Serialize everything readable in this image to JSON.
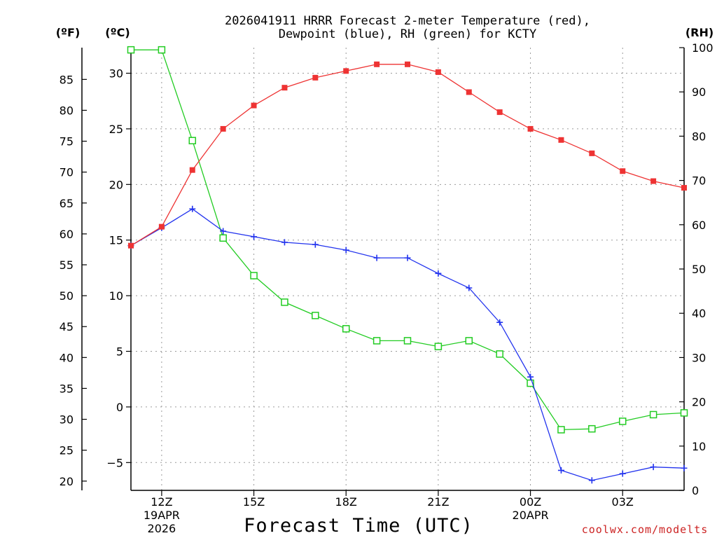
{
  "chart_data": {
    "type": "line",
    "title_line1": "2026041911 HRRR Forecast 2-meter Temperature (red),",
    "title_line2": "Dewpoint (blue), RH (green) for KCTY",
    "xlabel": "Forecast Time (UTC)",
    "credit": "coolwx.com/modelts",
    "left_unit_f": "(ºF)",
    "left_unit_c": "(ºC)",
    "right_unit": "(RH)",
    "x_hours": [
      11,
      12,
      13,
      14,
      15,
      16,
      17,
      18,
      19,
      20,
      21,
      22,
      23,
      24,
      25,
      26,
      27,
      28,
      29
    ],
    "x_ticks": [
      {
        "hour": 12,
        "label": "12Z",
        "sub1": "19APR",
        "sub2": "2026"
      },
      {
        "hour": 15,
        "label": "15Z",
        "sub1": "",
        "sub2": ""
      },
      {
        "hour": 18,
        "label": "18Z",
        "sub1": "",
        "sub2": ""
      },
      {
        "hour": 21,
        "label": "21Z",
        "sub1": "",
        "sub2": ""
      },
      {
        "hour": 24,
        "label": "00Z",
        "sub1": "20APR",
        "sub2": ""
      },
      {
        "hour": 27,
        "label": "03Z",
        "sub1": "",
        "sub2": ""
      }
    ],
    "xlim": [
      11,
      29
    ],
    "ylim_c": [
      -7.5,
      32.3
    ],
    "ylim_rh": [
      0,
      100
    ],
    "c_ticks": [
      "-5",
      "0",
      "5",
      "10",
      "15",
      "20",
      "25",
      "30"
    ],
    "f_ticks": [
      "20",
      "25",
      "30",
      "35",
      "40",
      "45",
      "50",
      "55",
      "60",
      "65",
      "70",
      "75",
      "80",
      "85"
    ],
    "rh_ticks": [
      "0",
      "10",
      "20",
      "30",
      "40",
      "50",
      "60",
      "70",
      "80",
      "90",
      "100"
    ],
    "series": [
      {
        "name": "Temperature",
        "unit": "C",
        "color": "#ee3333",
        "marker": "filled-square",
        "values": [
          14.5,
          16.2,
          21.3,
          25.0,
          27.1,
          28.7,
          29.6,
          30.2,
          30.8,
          30.8,
          30.1,
          28.3,
          26.5,
          25.0,
          24.0,
          22.8,
          21.2,
          20.3,
          19.7
        ]
      },
      {
        "name": "Dewpoint",
        "unit": "C",
        "color": "#2233ee",
        "marker": "plus",
        "values": [
          14.5,
          16.1,
          17.8,
          15.8,
          15.3,
          14.8,
          14.6,
          14.1,
          13.4,
          13.4,
          12.0,
          10.7,
          7.6,
          2.7,
          -5.7,
          -6.6,
          -6.0,
          -5.4,
          -5.5
        ]
      },
      {
        "name": "RH",
        "unit": "%",
        "color": "#22cc22",
        "marker": "open-square",
        "values": [
          99.5,
          99.5,
          79.0,
          57.0,
          48.5,
          42.5,
          39.5,
          36.5,
          33.8,
          33.8,
          32.5,
          33.8,
          30.8,
          24.2,
          13.7,
          13.9,
          15.6,
          17.1,
          17.5
        ]
      }
    ]
  }
}
